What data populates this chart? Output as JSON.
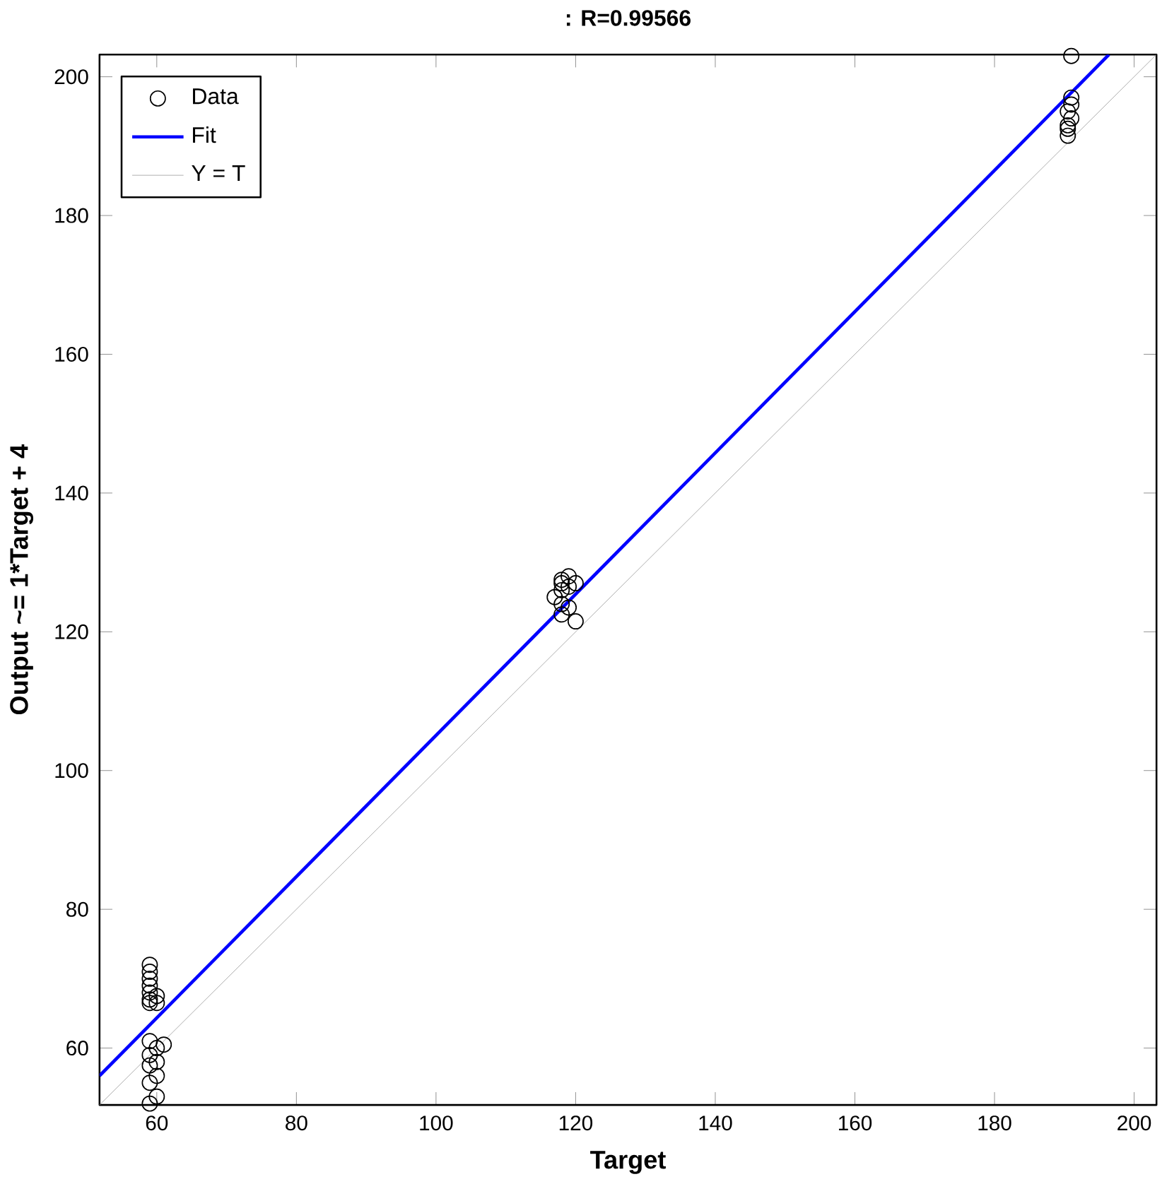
{
  "chart_data": {
    "type": "scatter",
    "title": ": R=0.99566",
    "xlabel": "Target",
    "ylabel": "Output ~= 1*Target + 4",
    "xlim": [
      51.8,
      203.2
    ],
    "ylim": [
      51.8,
      203.2
    ],
    "xticks": [
      60,
      80,
      100,
      120,
      140,
      160,
      180,
      200
    ],
    "yticks": [
      60,
      80,
      100,
      120,
      140,
      160,
      180,
      200
    ],
    "grid": false,
    "legend": "top left",
    "series": [
      {
        "name": "Data",
        "marker": "circle",
        "color": "#000000",
        "x": [
          59,
          60,
          59,
          60,
          59,
          60,
          59,
          60,
          61,
          59,
          59,
          59,
          59,
          59,
          59,
          59,
          59,
          60,
          60,
          118,
          119,
          120,
          117,
          118,
          118,
          119,
          118,
          120,
          119,
          118,
          190.5,
          190.5,
          191,
          190.5,
          191,
          191,
          190.5,
          191
        ],
        "values": [
          52,
          53,
          55,
          56,
          57.5,
          58,
          59,
          60,
          60.5,
          61,
          66.5,
          67,
          68,
          69,
          70,
          71,
          72,
          67.5,
          66.5,
          122.5,
          123.5,
          121.5,
          125,
          126,
          127,
          128,
          127.5,
          127,
          126.5,
          124,
          191.5,
          193,
          194,
          195,
          196,
          197,
          192.5,
          203
        ]
      },
      {
        "name": "Fit",
        "type": "line",
        "marker": "none",
        "color": "#0000ff",
        "x": [
          51.8,
          196.4
        ],
        "values": [
          56,
          203.2
        ]
      },
      {
        "name": "Y = T",
        "type": "line",
        "marker": "none",
        "color": "#a0a0a0",
        "x": [
          51.8,
          203.2
        ],
        "values": [
          51.8,
          203.2
        ]
      }
    ]
  }
}
